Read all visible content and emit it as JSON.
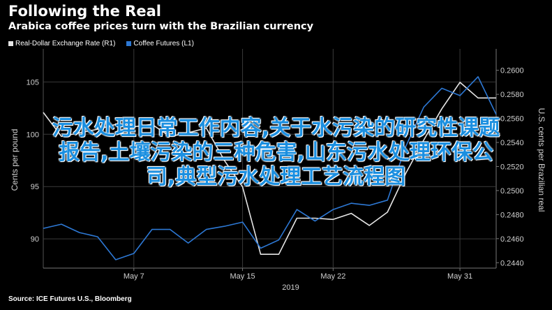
{
  "header": {
    "title": "Following the Real",
    "subtitle": "Arabica coffee prices turn with the Brazilian currency"
  },
  "legend": {
    "items": [
      {
        "label": "Real-Dollar Exchange Rate (R1)",
        "color": "#e6e6e6"
      },
      {
        "label": "Coffee Futures (L1)",
        "color": "#2d78d4"
      }
    ]
  },
  "source": "Source: ICE Futures U.S., Bloomberg",
  "overlay": {
    "lines": [
      "污水处理日常工作内容,关于水污染的研究性课题",
      "报告,土壤污染的三种危害,山东污水处理环保公",
      "司,典型污水处理工艺流程图"
    ]
  },
  "chart_data": {
    "type": "line",
    "x": [
      "Apr 30",
      "May 1",
      "May 2",
      "May 3",
      "May 6",
      "May 7",
      "May 8",
      "May 9",
      "May 10",
      "May 13",
      "May 14",
      "May 15",
      "May 16",
      "May 17",
      "May 20",
      "May 21",
      "May 22",
      "May 23",
      "May 24",
      "May 27",
      "May 28",
      "May 29",
      "May 30",
      "May 31",
      "Jun 3",
      "Jun 4"
    ],
    "x_ticks": [
      "May 7",
      "May 15",
      "May 22",
      "May 31"
    ],
    "x_year_label": "2019",
    "left_axis": {
      "label": "Cents per pound",
      "ticks": [
        90,
        95,
        100,
        105
      ],
      "range": [
        87.2,
        107.9
      ]
    },
    "right_axis": {
      "label": "U.S. cents per Brazilian real",
      "ticks": [
        "0.2440",
        "0.2460",
        "0.2480",
        "0.2500",
        "0.2520",
        "0.2540",
        "0.2560",
        "0.2580",
        "0.2600"
      ],
      "range": [
        0.24355,
        0.26155
      ]
    },
    "series": [
      {
        "name": "Real-Dollar Exchange Rate (R1)",
        "axis": "right",
        "color": "#e6e6e6",
        "values": [
          0.2565,
          0.2545,
          0.2548,
          0.2551,
          0.2555,
          0.2553,
          0.2555,
          0.2545,
          0.2548,
          0.2552,
          0.2525,
          0.2503,
          0.2447,
          0.2447,
          0.2477,
          0.2477,
          0.2476,
          0.2481,
          0.2471,
          0.2482,
          0.2514,
          0.2542,
          0.2568,
          0.259,
          0.2577,
          0.2577
        ]
      },
      {
        "name": "Coffee Futures (L1)",
        "axis": "left",
        "color": "#2d78d4",
        "values": [
          91.0,
          91.4,
          90.6,
          90.2,
          88.0,
          88.6,
          90.9,
          90.9,
          89.6,
          90.9,
          91.2,
          91.6,
          89.1,
          89.9,
          92.8,
          91.7,
          92.8,
          93.4,
          93.2,
          93.7,
          98.8,
          102.6,
          104.4,
          103.7,
          105.5,
          101.9
        ]
      }
    ],
    "grid": true
  }
}
